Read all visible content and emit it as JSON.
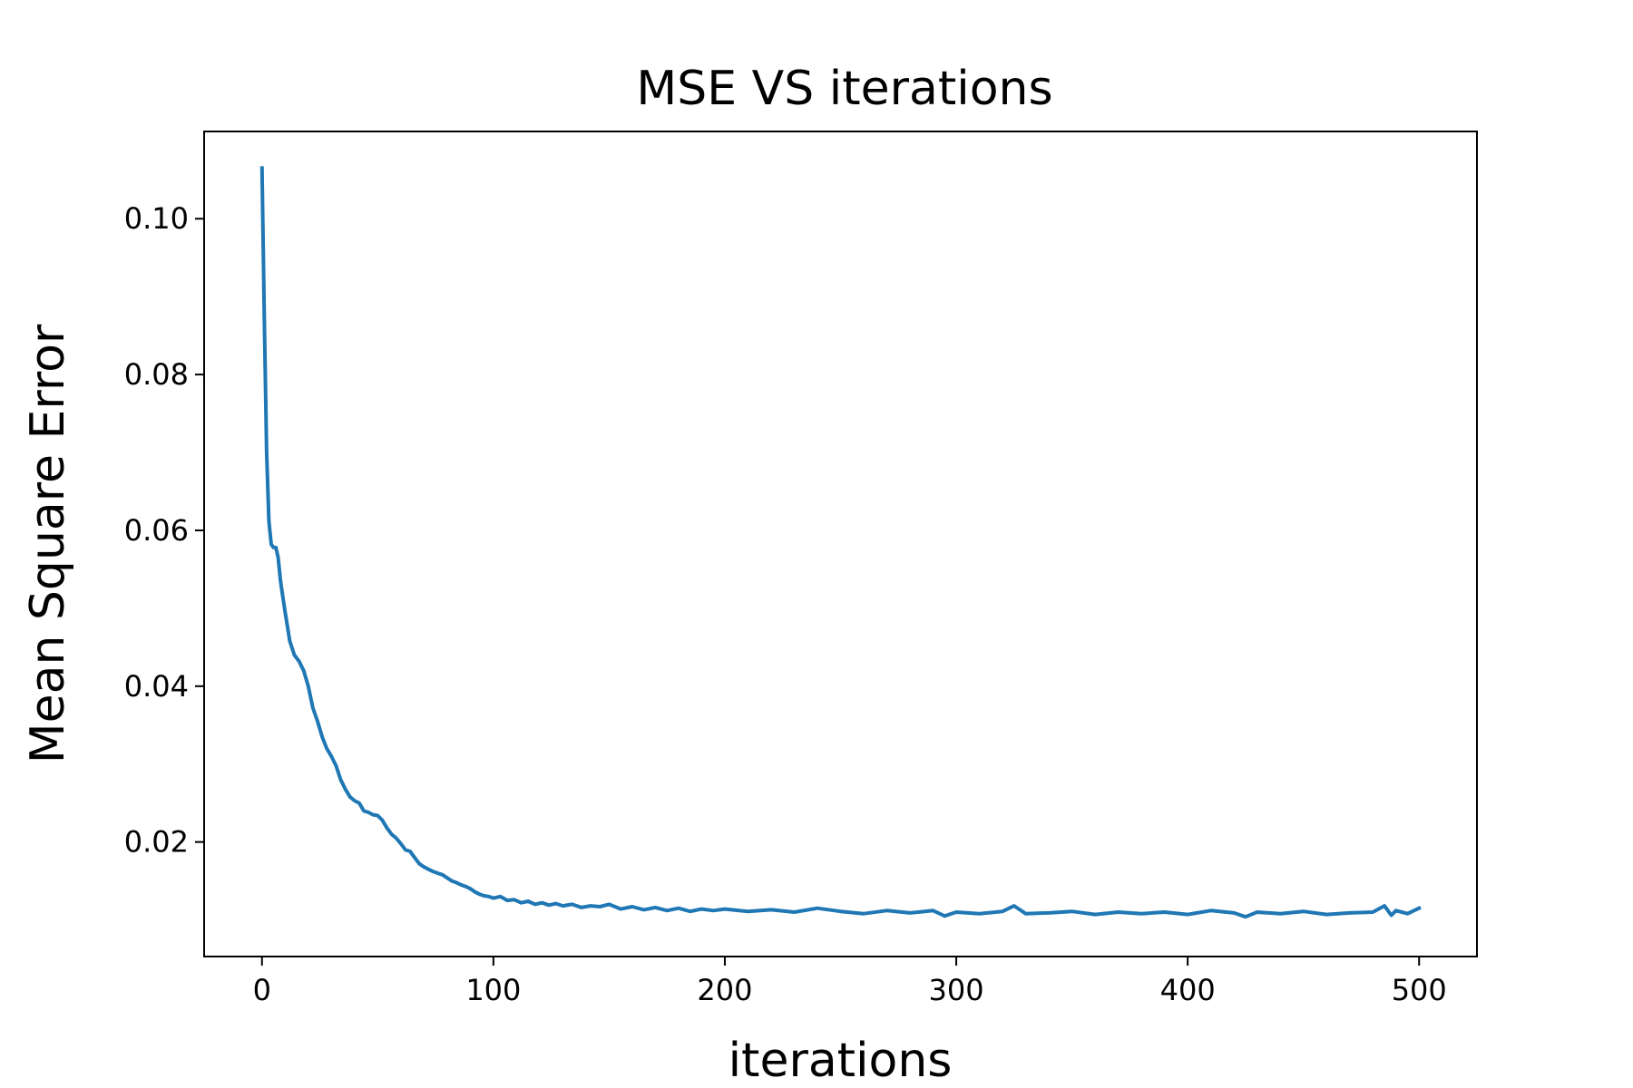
{
  "chart_data": {
    "type": "line",
    "title": "MSE VS iterations",
    "xlabel": "iterations",
    "ylabel": "Mean Square Error",
    "xlim": [
      -25,
      525
    ],
    "ylim": [
      0.0053,
      0.1112
    ],
    "xticks": [
      0,
      100,
      200,
      300,
      400,
      500
    ],
    "xtick_labels": [
      "0",
      "100",
      "200",
      "300",
      "400",
      "500"
    ],
    "yticks": [
      0.02,
      0.04,
      0.06,
      0.08,
      0.1
    ],
    "ytick_labels": [
      "0.02",
      "0.04",
      "0.06",
      "0.08",
      "0.10"
    ],
    "grid": false,
    "series_color": "#1f77b4",
    "series": [
      {
        "x": [
          0,
          1,
          2,
          3,
          4,
          5,
          6,
          7,
          8,
          9,
          10,
          12,
          14,
          16,
          18,
          20,
          22,
          24,
          26,
          28,
          30,
          32,
          34,
          36,
          38,
          40,
          42,
          44,
          46,
          48,
          50,
          52,
          54,
          56,
          58,
          60,
          62,
          64,
          66,
          68,
          70,
          72,
          74,
          76,
          78,
          80,
          82,
          84,
          86,
          88,
          90,
          92,
          94,
          96,
          98,
          100,
          103,
          106,
          109,
          112,
          115,
          118,
          121,
          124,
          127,
          130,
          134,
          138,
          142,
          146,
          150,
          155,
          160,
          165,
          170,
          175,
          180,
          185,
          190,
          195,
          200,
          210,
          220,
          230,
          240,
          250,
          260,
          270,
          280,
          290,
          295,
          300,
          310,
          320,
          325,
          330,
          340,
          350,
          360,
          370,
          380,
          390,
          400,
          410,
          420,
          425,
          430,
          440,
          450,
          460,
          470,
          480,
          485,
          488,
          490,
          495,
          500
        ],
        "y": [
          0.1065,
          0.0875,
          0.07,
          0.0612,
          0.0582,
          0.0578,
          0.0578,
          0.0565,
          0.0535,
          0.0515,
          0.0495,
          0.0458,
          0.044,
          0.0432,
          0.042,
          0.04,
          0.0372,
          0.0355,
          0.0335,
          0.032,
          0.031,
          0.0298,
          0.028,
          0.0268,
          0.0258,
          0.0253,
          0.025,
          0.024,
          0.0238,
          0.0235,
          0.0234,
          0.0228,
          0.0218,
          0.021,
          0.0205,
          0.0198,
          0.019,
          0.0188,
          0.018,
          0.0172,
          0.0168,
          0.0165,
          0.0162,
          0.016,
          0.0158,
          0.0154,
          0.015,
          0.0148,
          0.0145,
          0.0143,
          0.014,
          0.0136,
          0.0133,
          0.0131,
          0.013,
          0.0128,
          0.013,
          0.0125,
          0.0126,
          0.0122,
          0.0124,
          0.012,
          0.0122,
          0.0119,
          0.0121,
          0.0118,
          0.012,
          0.0116,
          0.0118,
          0.0117,
          0.012,
          0.0114,
          0.0117,
          0.0113,
          0.0116,
          0.0112,
          0.0115,
          0.0111,
          0.0114,
          0.0112,
          0.0114,
          0.0111,
          0.0113,
          0.011,
          0.0115,
          0.0111,
          0.0108,
          0.0112,
          0.0109,
          0.0112,
          0.0105,
          0.011,
          0.0108,
          0.0111,
          0.0118,
          0.0108,
          0.0109,
          0.0111,
          0.0107,
          0.011,
          0.0108,
          0.011,
          0.0107,
          0.0112,
          0.0109,
          0.0104,
          0.011,
          0.0108,
          0.0111,
          0.0107,
          0.0109,
          0.011,
          0.0118,
          0.0106,
          0.0112,
          0.0108,
          0.0115
        ]
      }
    ]
  }
}
